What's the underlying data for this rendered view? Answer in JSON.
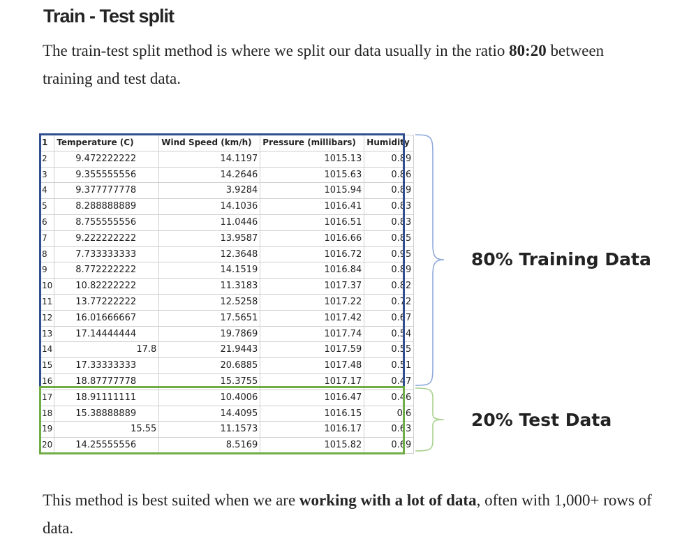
{
  "heading": "Train - Test split",
  "intro": {
    "before": "The train-test split method is where we split our data usually in the ratio ",
    "bold": "80:20",
    "after": " between training and test data."
  },
  "table": {
    "header_row_number": "1",
    "columns": [
      "Temperature (C)",
      "Wind Speed (km/h)",
      "Pressure (millibars)",
      "Humidity"
    ],
    "rows": [
      {
        "n": "2",
        "cells": [
          "9.472222222",
          "14.1197",
          "1015.13",
          "0.89"
        ]
      },
      {
        "n": "3",
        "cells": [
          "9.355555556",
          "14.2646",
          "1015.63",
          "0.86"
        ]
      },
      {
        "n": "4",
        "cells": [
          "9.377777778",
          "3.9284",
          "1015.94",
          "0.89"
        ]
      },
      {
        "n": "5",
        "cells": [
          "8.288888889",
          "14.1036",
          "1016.41",
          "0.83"
        ]
      },
      {
        "n": "6",
        "cells": [
          "8.755555556",
          "11.0446",
          "1016.51",
          "0.83"
        ]
      },
      {
        "n": "7",
        "cells": [
          "9.222222222",
          "13.9587",
          "1016.66",
          "0.85"
        ]
      },
      {
        "n": "8",
        "cells": [
          "7.733333333",
          "12.3648",
          "1016.72",
          "0.95"
        ]
      },
      {
        "n": "9",
        "cells": [
          "8.772222222",
          "14.1519",
          "1016.84",
          "0.89"
        ]
      },
      {
        "n": "10",
        "cells": [
          "10.82222222",
          "11.3183",
          "1017.37",
          "0.82"
        ]
      },
      {
        "n": "11",
        "cells": [
          "13.77222222",
          "12.5258",
          "1017.22",
          "0.72"
        ]
      },
      {
        "n": "12",
        "cells": [
          "16.01666667",
          "17.5651",
          "1017.42",
          "0.67"
        ]
      },
      {
        "n": "13",
        "cells": [
          "17.14444444",
          "19.7869",
          "1017.74",
          "0.54"
        ]
      },
      {
        "n": "14",
        "cells": [
          "17.8",
          "21.9443",
          "1017.59",
          "0.55"
        ]
      },
      {
        "n": "15",
        "cells": [
          "17.33333333",
          "20.6885",
          "1017.48",
          "0.51"
        ]
      },
      {
        "n": "16",
        "cells": [
          "18.87777778",
          "15.3755",
          "1017.17",
          "0.47"
        ]
      },
      {
        "n": "17",
        "cells": [
          "18.91111111",
          "10.4006",
          "1016.47",
          "0.46"
        ]
      },
      {
        "n": "18",
        "cells": [
          "15.38888889",
          "14.4095",
          "1016.15",
          "0.6"
        ]
      },
      {
        "n": "19",
        "cells": [
          "15.55",
          "11.1573",
          "1016.17",
          "0.63"
        ]
      },
      {
        "n": "20",
        "cells": [
          "14.25555556",
          "8.5169",
          "1015.82",
          "0.69"
        ]
      }
    ]
  },
  "labels": {
    "training": "80% Training Data",
    "test": "20% Test Data"
  },
  "colors": {
    "training_border": "#2f4f8f",
    "test_border": "#70ad47",
    "training_brace": "#8ea9db",
    "test_brace": "#a9d18e"
  },
  "outro": {
    "before": "This method is best suited when we are ",
    "bold": "working with a lot of data",
    "after": ", often with 1,000+ rows of data."
  }
}
